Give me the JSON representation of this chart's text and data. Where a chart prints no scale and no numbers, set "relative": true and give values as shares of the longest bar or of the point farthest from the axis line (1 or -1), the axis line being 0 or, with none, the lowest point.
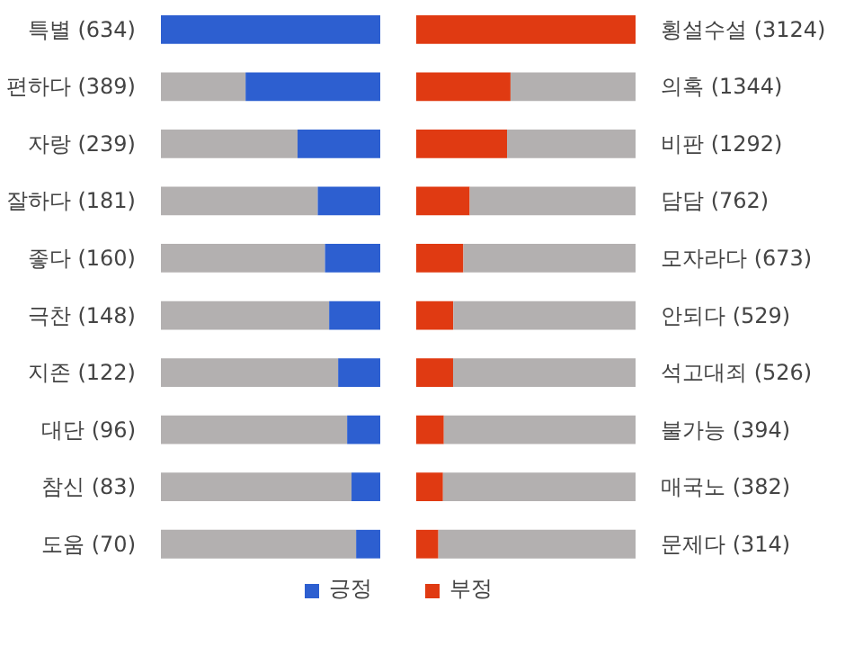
{
  "chart_data": [
    {
      "type": "bar",
      "orientation": "horizontal",
      "stacked": true,
      "relative": true,
      "legend": "bottom right",
      "grid": false,
      "categories": [
        "특별 (634)",
        "편하다 (389)",
        "자랑 (239)",
        "잘하다 (181)",
        "좋다 (160)",
        "극찬 (148)",
        "지존 (122)",
        "대단 (96)",
        "참신 (83)",
        "도움 (70)"
      ],
      "series": [
        {
          "color": "#b3b0b0",
          "values": [
            0,
            0.386,
            0.623,
            0.715,
            0.748,
            0.767,
            0.808,
            0.849,
            0.869,
            0.89
          ]
        },
        {
          "name": "긍정",
          "color": "#2d5fd0",
          "values": [
            1,
            0.614,
            0.377,
            0.285,
            0.252,
            0.233,
            0.192,
            0.151,
            0.131,
            0.11
          ]
        }
      ]
    },
    {
      "type": "bar",
      "orientation": "horizontal",
      "stacked": true,
      "relative": true,
      "legend": "bottom left",
      "grid": false,
      "categories": [
        "횡설수설 (3124)",
        "의혹 (1344)",
        "비판 (1292)",
        "담담 (762)",
        "모자라다 (673)",
        "안되다 (529)",
        "석고대죄 (526)",
        "불가능 (394)",
        "매국노 (382)",
        "문제다 (314)"
      ],
      "series": [
        {
          "name": "부정",
          "color": "#e03a12",
          "values": [
            1,
            0.43,
            0.414,
            0.244,
            0.215,
            0.169,
            0.168,
            0.126,
            0.122,
            0.101
          ]
        },
        {
          "color": "#b3b0b0",
          "values": [
            0,
            0.57,
            0.586,
            0.756,
            0.785,
            0.831,
            0.832,
            0.874,
            0.878,
            0.899
          ]
        }
      ]
    }
  ]
}
